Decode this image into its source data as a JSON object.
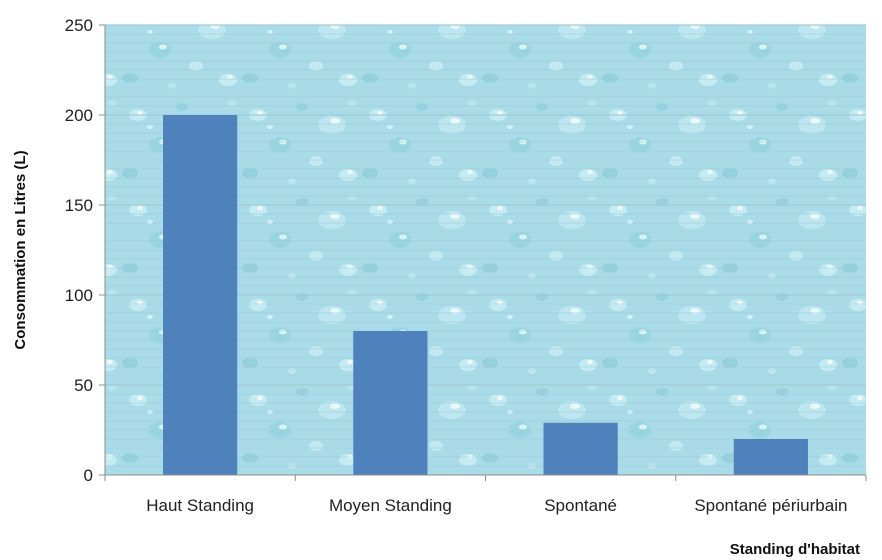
{
  "chart_data": {
    "type": "bar",
    "title": "",
    "xlabel": "Standing d'habitat",
    "ylabel": "Consommation  en Litres (L)",
    "categories": [
      "Haut Standing",
      "Moyen Standing",
      "Spontané",
      "Spontané périurbain"
    ],
    "values": [
      200,
      80,
      29,
      20
    ],
    "ylim": [
      0,
      250
    ],
    "yticks": [
      0,
      50,
      100,
      150,
      200,
      250
    ],
    "grid": true,
    "legend": "none",
    "plot_background": "water droplets texture",
    "colors": {
      "bar": "#4F81BD",
      "plot_bg": "#A9DCE8",
      "gridline": "#9FC7CF",
      "axis": "#8C8C8C"
    }
  }
}
